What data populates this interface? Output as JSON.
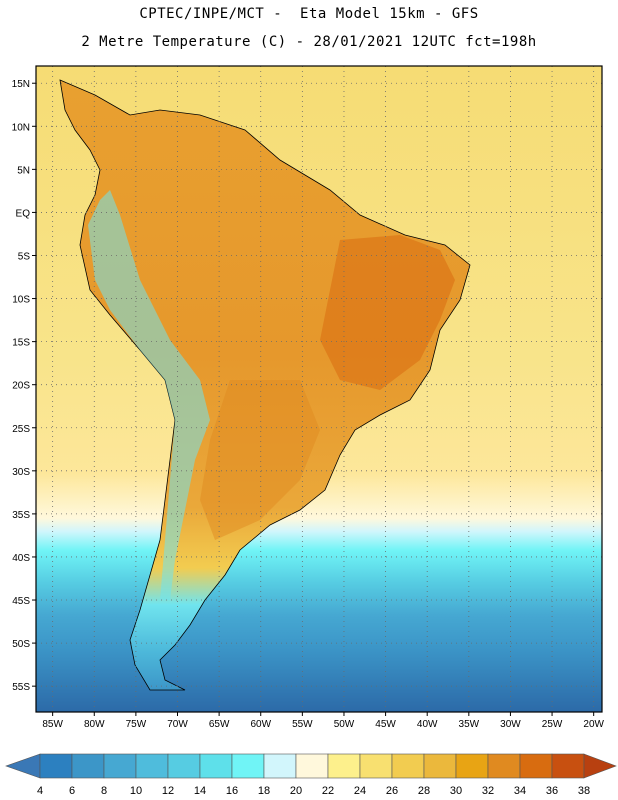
{
  "header": {
    "line1": "CPTEC/INPE/MCT -  Eta Model 15km - GFS",
    "line2": "2 Metre Temperature (C) - 28/01/2021 12UTC fct=198h"
  },
  "map": {
    "region": "South America",
    "lon_range": [
      -87,
      -19
    ],
    "lat_range": [
      -58,
      17
    ],
    "lon_ticks": [
      {
        "value": -85,
        "label": "85W"
      },
      {
        "value": -80,
        "label": "80W"
      },
      {
        "value": -75,
        "label": "75W"
      },
      {
        "value": -70,
        "label": "70W"
      },
      {
        "value": -65,
        "label": "65W"
      },
      {
        "value": -60,
        "label": "60W"
      },
      {
        "value": -55,
        "label": "55W"
      },
      {
        "value": -50,
        "label": "50W"
      },
      {
        "value": -45,
        "label": "45W"
      },
      {
        "value": -40,
        "label": "40W"
      },
      {
        "value": -35,
        "label": "35W"
      },
      {
        "value": -30,
        "label": "30W"
      },
      {
        "value": -25,
        "label": "25W"
      },
      {
        "value": -20,
        "label": "20W"
      }
    ],
    "lat_ticks": [
      {
        "value": 15,
        "label": "15N"
      },
      {
        "value": 10,
        "label": "10N"
      },
      {
        "value": 5,
        "label": "5N"
      },
      {
        "value": 0,
        "label": "EQ"
      },
      {
        "value": -5,
        "label": "5S"
      },
      {
        "value": -10,
        "label": "10S"
      },
      {
        "value": -15,
        "label": "15S"
      },
      {
        "value": -20,
        "label": "20S"
      },
      {
        "value": -25,
        "label": "25S"
      },
      {
        "value": -30,
        "label": "30S"
      },
      {
        "value": -35,
        "label": "35S"
      },
      {
        "value": -40,
        "label": "40S"
      },
      {
        "value": -45,
        "label": "45S"
      },
      {
        "value": -50,
        "label": "50S"
      },
      {
        "value": -55,
        "label": "55S"
      }
    ],
    "gridlines": true
  },
  "colorbar": {
    "levels": [
      "4",
      "6",
      "8",
      "10",
      "12",
      "14",
      "16",
      "18",
      "20",
      "22",
      "24",
      "26",
      "28",
      "30",
      "32",
      "34",
      "36",
      "38"
    ],
    "colors": [
      "#3a78b6",
      "#2c80c0",
      "#3c96c8",
      "#46a8d2",
      "#4fbcdc",
      "#56cce2",
      "#5ee0ea",
      "#70f4f6",
      "#d2f6fc",
      "#fff8dc",
      "#fdf08c",
      "#f8e070",
      "#f2cc50",
      "#ebb83c",
      "#e8a414",
      "#e08a20",
      "#d86c10",
      "#c85010",
      "#b84010"
    ],
    "extend": "both"
  }
}
